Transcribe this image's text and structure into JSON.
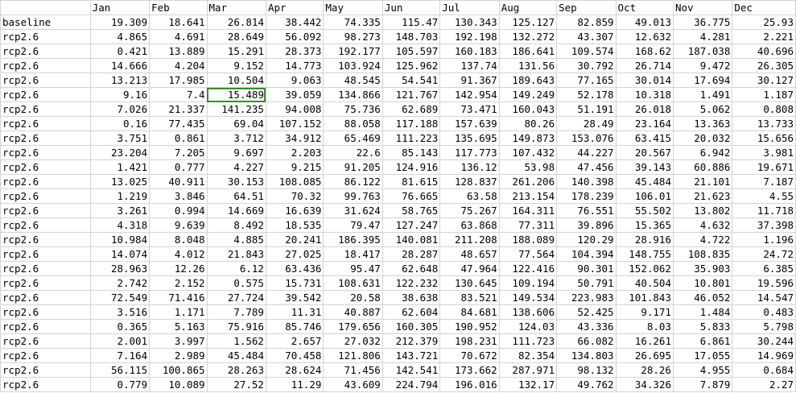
{
  "sheet": {
    "columns": [
      "",
      "Jan",
      "Feb",
      "Mar",
      "Apr",
      "May",
      "Jun",
      "Jul",
      "Aug",
      "Sep",
      "Oct",
      "Nov",
      "Dec"
    ],
    "selected_cell": {
      "row": 6,
      "col": 3
    },
    "rows": [
      [
        "baseline",
        "19.309",
        "18.641",
        "26.814",
        "38.442",
        "74.335",
        "115.47",
        "130.343",
        "125.127",
        "82.859",
        "49.013",
        "36.775",
        "25.93"
      ],
      [
        "rcp2.6",
        "4.865",
        "4.691",
        "28.649",
        "56.092",
        "98.273",
        "148.703",
        "192.198",
        "132.272",
        "43.307",
        "12.632",
        "4.281",
        "2.221"
      ],
      [
        "rcp2.6",
        "0.421",
        "13.889",
        "15.291",
        "28.373",
        "192.177",
        "105.597",
        "160.183",
        "186.641",
        "109.574",
        "168.62",
        "187.038",
        "40.696"
      ],
      [
        "rcp2.6",
        "14.666",
        "4.204",
        "9.152",
        "14.773",
        "103.924",
        "125.962",
        "137.74",
        "131.56",
        "30.792",
        "26.714",
        "9.472",
        "26.305"
      ],
      [
        "rcp2.6",
        "13.213",
        "17.985",
        "10.504",
        "9.063",
        "48.545",
        "54.541",
        "91.367",
        "189.643",
        "77.165",
        "30.014",
        "17.694",
        "30.127"
      ],
      [
        "rcp2.6",
        "9.16",
        "7.4",
        "15.489",
        "39.059",
        "134.866",
        "121.767",
        "142.954",
        "149.249",
        "52.178",
        "10.318",
        "1.491",
        "1.187"
      ],
      [
        "rcp2.6",
        "7.026",
        "21.337",
        "141.235",
        "94.008",
        "75.736",
        "62.689",
        "73.471",
        "160.043",
        "51.191",
        "26.018",
        "5.062",
        "0.808"
      ],
      [
        "rcp2.6",
        "0.16",
        "77.435",
        "69.04",
        "107.152",
        "88.058",
        "117.188",
        "157.639",
        "80.26",
        "28.49",
        "23.164",
        "13.363",
        "13.733"
      ],
      [
        "rcp2.6",
        "3.751",
        "0.861",
        "3.712",
        "34.912",
        "65.469",
        "111.223",
        "135.695",
        "149.873",
        "153.076",
        "63.415",
        "20.032",
        "15.656"
      ],
      [
        "rcp2.6",
        "23.204",
        "7.205",
        "9.697",
        "2.203",
        "22.6",
        "85.143",
        "117.773",
        "107.432",
        "44.227",
        "20.567",
        "6.942",
        "3.981"
      ],
      [
        "rcp2.6",
        "1.421",
        "0.777",
        "4.227",
        "9.215",
        "91.205",
        "124.916",
        "136.12",
        "53.98",
        "47.456",
        "39.143",
        "60.886",
        "19.671"
      ],
      [
        "rcp2.6",
        "13.025",
        "40.911",
        "30.153",
        "108.085",
        "86.122",
        "81.615",
        "128.837",
        "261.206",
        "140.398",
        "45.484",
        "21.101",
        "7.187"
      ],
      [
        "rcp2.6",
        "1.219",
        "3.846",
        "64.51",
        "70.32",
        "99.763",
        "76.665",
        "63.58",
        "213.154",
        "178.239",
        "106.01",
        "21.623",
        "4.55"
      ],
      [
        "rcp2.6",
        "3.261",
        "0.994",
        "14.669",
        "16.639",
        "31.624",
        "58.765",
        "75.267",
        "164.311",
        "76.551",
        "55.502",
        "13.802",
        "11.718"
      ],
      [
        "rcp2.6",
        "4.318",
        "9.639",
        "8.492",
        "18.535",
        "79.47",
        "127.247",
        "63.868",
        "77.311",
        "39.896",
        "15.365",
        "4.632",
        "37.398"
      ],
      [
        "rcp2.6",
        "10.984",
        "8.048",
        "4.885",
        "20.241",
        "186.395",
        "140.081",
        "211.208",
        "188.089",
        "120.29",
        "28.916",
        "4.722",
        "1.196"
      ],
      [
        "rcp2.6",
        "14.074",
        "4.012",
        "21.843",
        "27.025",
        "18.417",
        "28.287",
        "48.657",
        "77.564",
        "104.394",
        "148.755",
        "108.835",
        "24.72"
      ],
      [
        "rcp2.6",
        "28.963",
        "12.26",
        "6.12",
        "63.436",
        "95.47",
        "62.648",
        "47.964",
        "122.416",
        "90.301",
        "152.062",
        "35.903",
        "6.385"
      ],
      [
        "rcp2.6",
        "2.742",
        "2.152",
        "0.575",
        "15.731",
        "108.631",
        "122.232",
        "130.645",
        "109.194",
        "50.791",
        "40.504",
        "10.801",
        "19.596"
      ],
      [
        "rcp2.6",
        "72.549",
        "71.416",
        "27.724",
        "39.542",
        "20.58",
        "38.638",
        "83.521",
        "149.534",
        "223.983",
        "101.843",
        "46.052",
        "14.547"
      ],
      [
        "rcp2.6",
        "3.516",
        "1.171",
        "7.789",
        "11.31",
        "40.887",
        "62.604",
        "84.681",
        "138.606",
        "52.425",
        "9.171",
        "1.484",
        "0.483"
      ],
      [
        "rcp2.6",
        "0.365",
        "5.163",
        "75.916",
        "85.746",
        "179.656",
        "160.305",
        "190.952",
        "124.03",
        "43.336",
        "8.03",
        "5.833",
        "5.798"
      ],
      [
        "rcp2.6",
        "2.001",
        "3.997",
        "1.562",
        "2.657",
        "27.032",
        "212.379",
        "198.231",
        "111.723",
        "66.082",
        "16.261",
        "6.861",
        "30.244"
      ],
      [
        "rcp2.6",
        "7.164",
        "2.989",
        "45.484",
        "70.458",
        "121.806",
        "143.721",
        "70.672",
        "82.354",
        "134.803",
        "26.695",
        "17.055",
        "14.969"
      ],
      [
        "rcp2.6",
        "56.115",
        "100.865",
        "28.263",
        "28.624",
        "71.456",
        "142.541",
        "173.662",
        "287.971",
        "98.132",
        "28.26",
        "4.955",
        "0.684"
      ],
      [
        "rcp2.6",
        "0.779",
        "10.089",
        "27.52",
        "11.29",
        "43.609",
        "224.794",
        "196.016",
        "132.17",
        "49.762",
        "34.326",
        "7.879",
        "2.27"
      ]
    ]
  }
}
